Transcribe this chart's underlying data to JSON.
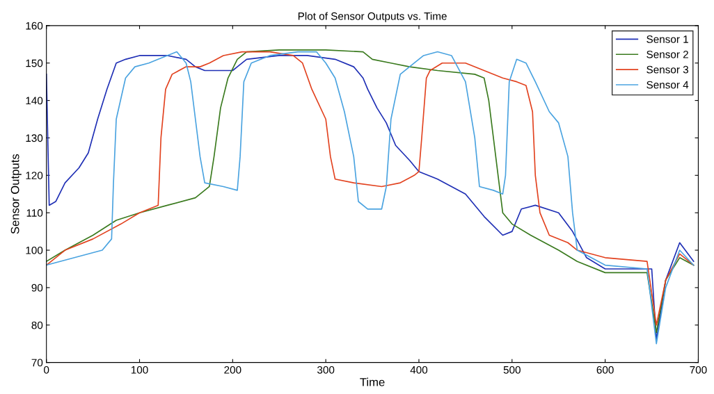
{
  "chart_data": {
    "type": "line",
    "title": "Plot of Sensor Outputs vs. Time",
    "xlabel": "Time",
    "ylabel": "Sensor Outputs",
    "xlim": [
      0,
      700
    ],
    "xticks": [
      0,
      100,
      200,
      300,
      400,
      500,
      600,
      700
    ],
    "ylim": [
      70,
      160
    ],
    "yticks": [
      70,
      80,
      90,
      100,
      110,
      120,
      130,
      140,
      150,
      160
    ],
    "legend": "top right",
    "grid": false,
    "series": [
      {
        "name": "Sensor 1",
        "color": "#1f2fb5",
        "x": [
          0,
          3,
          10,
          20,
          35,
          45,
          55,
          65,
          75,
          85,
          100,
          130,
          150,
          160,
          170,
          200,
          205,
          215,
          250,
          280,
          310,
          330,
          340,
          345,
          355,
          365,
          375,
          390,
          400,
          420,
          450,
          470,
          490,
          500,
          510,
          525,
          550,
          565,
          580,
          600,
          650,
          655,
          665,
          680,
          695
        ],
        "values": [
          147,
          112,
          113,
          118,
          122,
          126,
          135,
          143,
          150,
          151,
          152,
          152,
          151,
          149,
          148,
          148,
          149,
          151,
          152,
          152,
          151,
          149,
          146,
          143,
          138,
          134,
          128,
          124,
          121,
          119,
          115,
          109,
          104,
          105,
          111,
          112,
          110,
          105,
          98,
          95,
          95,
          76,
          92,
          102,
          97
        ]
      },
      {
        "name": "Sensor 2",
        "color": "#3a7a1e",
        "x": [
          0,
          20,
          50,
          75,
          100,
          130,
          160,
          175,
          180,
          187,
          195,
          205,
          215,
          250,
          300,
          340,
          350,
          370,
          390,
          420,
          460,
          470,
          475,
          480,
          485,
          490,
          500,
          520,
          550,
          570,
          600,
          645,
          655,
          665,
          680,
          695
        ],
        "values": [
          97,
          100,
          104,
          108,
          110,
          112,
          114,
          117,
          125,
          138,
          146,
          151,
          153,
          153.5,
          153.5,
          153,
          151,
          150,
          149,
          148,
          147,
          146,
          140,
          130,
          120,
          110,
          107,
          104,
          100,
          97,
          94,
          94,
          78,
          92,
          98,
          96
        ]
      },
      {
        "name": "Sensor 3",
        "color": "#e2421f",
        "x": [
          0,
          20,
          50,
          80,
          100,
          120,
          123,
          128,
          135,
          150,
          165,
          175,
          190,
          210,
          240,
          265,
          275,
          285,
          300,
          305,
          310,
          330,
          360,
          380,
          395,
          400,
          403,
          408,
          412,
          425,
          450,
          470,
          490,
          505,
          515,
          522,
          525,
          530,
          540,
          560,
          570,
          600,
          645,
          655,
          665,
          680,
          695
        ],
        "values": [
          96,
          100,
          103,
          107,
          110,
          112,
          130,
          143,
          147,
          149,
          149,
          150,
          152,
          153,
          153,
          152,
          150,
          143,
          135,
          125,
          119,
          118,
          117,
          118,
          120,
          121,
          130,
          146,
          148,
          150,
          150,
          148,
          146,
          145,
          144,
          137,
          120,
          110,
          104,
          102,
          100,
          98,
          97,
          80,
          92,
          99,
          96
        ]
      },
      {
        "name": "Sensor 4",
        "color": "#4aa3e0",
        "x": [
          0,
          30,
          60,
          70,
          72,
          75,
          85,
          95,
          110,
          120,
          140,
          150,
          155,
          160,
          165,
          170,
          190,
          205,
          208,
          212,
          220,
          240,
          270,
          290,
          300,
          310,
          320,
          330,
          335,
          345,
          360,
          365,
          370,
          380,
          395,
          405,
          420,
          435,
          450,
          460,
          465,
          480,
          490,
          493,
          497,
          505,
          515,
          525,
          540,
          550,
          560,
          565,
          570,
          600,
          645,
          655,
          665,
          680,
          695
        ],
        "values": [
          96,
          98,
          100,
          103,
          118,
          135,
          146,
          149,
          150,
          151,
          153,
          150,
          145,
          135,
          125,
          118,
          117,
          116,
          125,
          145,
          150,
          152,
          153,
          153,
          150,
          146,
          137,
          125,
          113,
          111,
          111,
          117,
          135,
          147,
          150,
          152,
          153,
          152,
          145,
          130,
          117,
          116,
          115,
          120,
          145,
          151,
          150,
          145,
          137,
          134,
          125,
          110,
          100,
          96,
          95,
          75,
          90,
          100,
          96
        ]
      }
    ]
  }
}
